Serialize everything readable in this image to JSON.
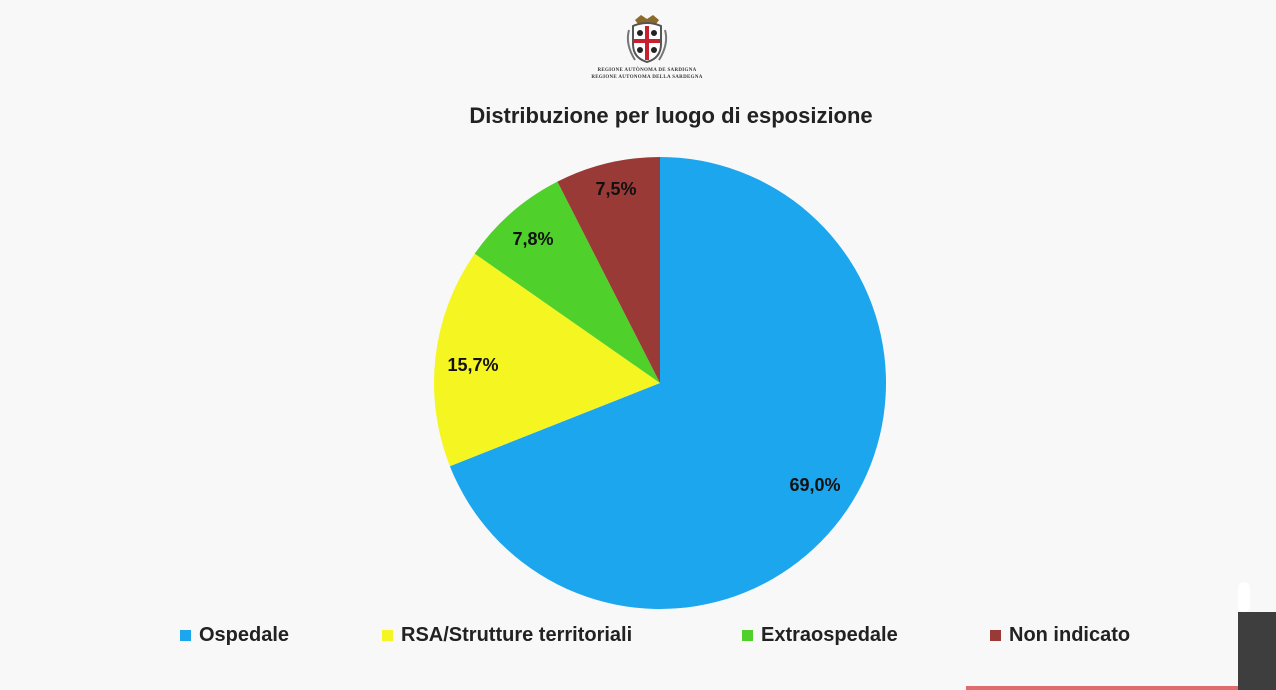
{
  "logo": {
    "name": "coat-of-arms-icon",
    "line1": "REGIONE AUTÒNOMA DE SARDIGNA",
    "line2": "REGIONE AUTONOMA DELLA SARDEGNA"
  },
  "chart_data": {
    "type": "pie",
    "title": "Distribuzione per luogo di esposizione",
    "slices": [
      {
        "name": "Ospedale",
        "value": 69.0,
        "label": "69,0%",
        "color": "#1ca6ee"
      },
      {
        "name": "RSA/Strutture territoriali",
        "value": 15.7,
        "label": "15,7%",
        "color": "#f5f521"
      },
      {
        "name": "Extraospedale",
        "value": 7.8,
        "label": "7,8%",
        "color": "#4fd02b"
      },
      {
        "name": "Non indicato",
        "value": 7.5,
        "label": "7,5%",
        "color": "#9a3a36"
      }
    ],
    "start": "12 o'clock",
    "direction": "clockwise",
    "legend": "bottom"
  }
}
